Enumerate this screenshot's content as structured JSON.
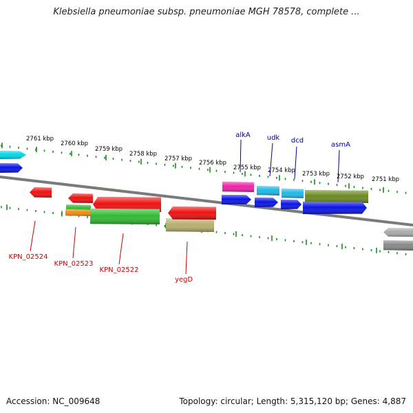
{
  "title": "Klebsiella pneumoniae subsp. pneumoniae MGH 78578, complete ...",
  "footer": {
    "accession": "Accession: NC_009648",
    "summary": "Topology: circular; Length: 5,315,120 bp; Genes: 4,887"
  },
  "colors": {
    "backbone": "#7a7a7a",
    "tick": "#1a8a1a",
    "kbp_label": "#000000",
    "gene_label_top": "#00008b",
    "gene_label_bottom": "#cc0000"
  },
  "kbp_labels": [
    "2761 kbp",
    "2760 kbp",
    "2759 kbp",
    "2758 kbp",
    "2757 kbp",
    "2756 kbp",
    "2755 kbp",
    "2754 kbp",
    "2753 kbp",
    "2752 kbp",
    "2751 kbp"
  ],
  "top_gene_labels": [
    "alkA",
    "udk",
    "dcd",
    "asmA"
  ],
  "bottom_gene_labels": [
    "KPN_02524",
    "KPN_02523",
    "KPN_02522",
    "yegD"
  ],
  "features": [
    {
      "name": "cyan-feature-left",
      "color": "#00d8e8"
    },
    {
      "name": "blue-feature-left",
      "color": "#0a14e6"
    },
    {
      "name": "alkA",
      "color": "#ee22aa"
    },
    {
      "name": "udk",
      "color": "#22b8e6"
    },
    {
      "name": "dcd",
      "color": "#22b8e6"
    },
    {
      "name": "asmA",
      "color": "#6b8a22"
    },
    {
      "name": "blue-feature-1",
      "color": "#0a14e6"
    },
    {
      "name": "blue-feature-2",
      "color": "#0a14e6"
    },
    {
      "name": "blue-feature-3",
      "color": "#0a14e6"
    },
    {
      "name": "blue-feature-4",
      "color": "#0a14e6"
    },
    {
      "name": "KPN_02524",
      "color": "#ee1111"
    },
    {
      "name": "red-feature-a",
      "color": "#ee1111"
    },
    {
      "name": "red-feature-b",
      "color": "#ee1111"
    },
    {
      "name": "KPN_02523-green",
      "color": "#33bb33"
    },
    {
      "name": "KPN_02523-orange",
      "color": "#f08a10"
    },
    {
      "name": "KPN_02522",
      "color": "#33bb33"
    },
    {
      "name": "yegD",
      "color": "#b8b070"
    },
    {
      "name": "red-feature-right",
      "color": "#ee1111"
    },
    {
      "name": "gray-feature-right",
      "color": "#aaaaaa"
    }
  ]
}
